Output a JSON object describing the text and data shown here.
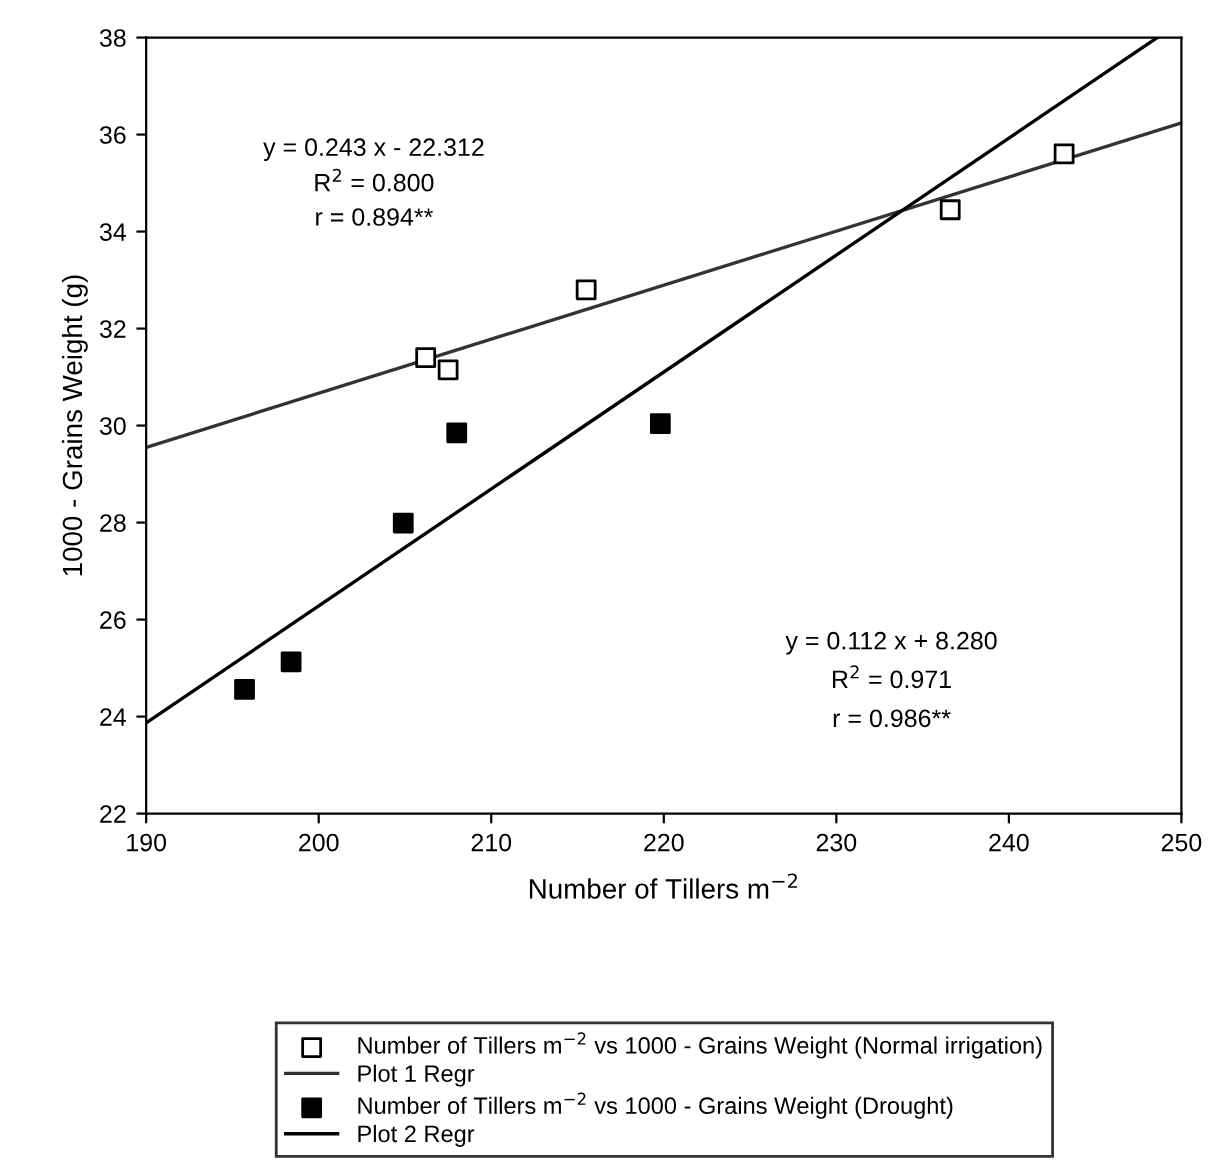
{
  "chart_data": {
    "type": "scatter",
    "xlabel": "Number of Tillers m$^{−2}$",
    "ylabel": "1000 - Grains Weight (g)",
    "xlim": [
      190,
      250
    ],
    "ylim": [
      22,
      38
    ],
    "xticks": [
      190,
      200,
      210,
      220,
      230,
      240,
      250
    ],
    "yticks": [
      22,
      24,
      26,
      28,
      30,
      32,
      34,
      36,
      38
    ],
    "grid": false,
    "legend": "bottom",
    "series": [
      {
        "name": "Number of Tillers m$^{−2}$ vs 1000 - Grains Weight (Normal irrigation)",
        "marker": "square",
        "color": "#ffffff",
        "x": [
          206.2,
          207.5,
          215.5,
          236.6,
          243.2
        ],
        "values": [
          31.4,
          31.15,
          32.8,
          34.45,
          35.6
        ]
      },
      {
        "name": "Plot 1 Regr",
        "type": "line",
        "marker": "none",
        "color": "#333333",
        "x": [
          190,
          250
        ],
        "values": [
          29.55,
          36.24
        ]
      },
      {
        "name": "Number of Tillers m$^{−2}$ vs 1000 - Grains Weight (Drought)",
        "marker": "square",
        "color": "#000000",
        "x": [
          195.7,
          198.4,
          204.9,
          208.0,
          219.8
        ],
        "values": [
          24.56,
          25.13,
          27.99,
          29.85,
          30.04
        ]
      },
      {
        "name": "Plot 2 Regr",
        "type": "line",
        "marker": "none",
        "color": "#000000",
        "x": [
          190,
          248.6
        ],
        "values": [
          23.87,
          38.0
        ]
      }
    ],
    "annotations": [
      "y = 0.243 x - 22.312",
      "R$^{2}$ = 0.800",
      "r = 0.894**",
      "y = 0.112 x + 8.280",
      "R$^{2}$ = 0.971",
      "r = 0.986**"
    ]
  }
}
